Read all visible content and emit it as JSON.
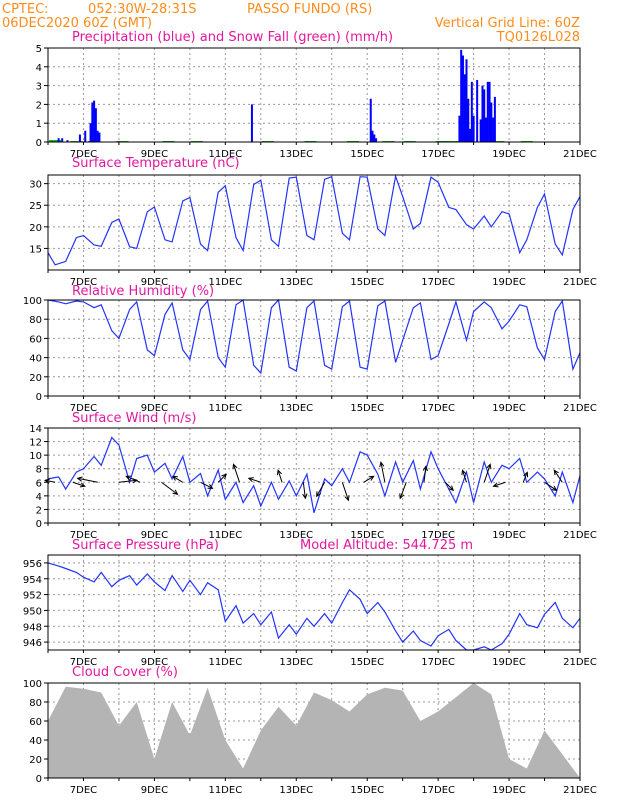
{
  "header": {
    "source": "CPTEC:",
    "coords": "052:30W-28:31S",
    "location": "PASSO FUNDO (RS)",
    "run": "06DEC2020 60Z (GMT)",
    "grid_note": "Vertical Grid Line: 60Z",
    "model": "TQ0126L028"
  },
  "date_labels": [
    "7DEC",
    "9DEC",
    "11DEC",
    "13DEC",
    "15DEC",
    "17DEC",
    "19DEC",
    "21DEC"
  ],
  "colors": {
    "precip": "#0000ff",
    "snow": "#00aa00",
    "line": "#2233ff",
    "cloud": "#b4b4b4",
    "grid": "#999999",
    "header": "#ff8c1a",
    "title": "#e4179f"
  },
  "chart_data": [
    {
      "type": "bar",
      "title": "Precipitation (blue) and Snow Fall (green) (mm/h)",
      "x_range": [
        6.0,
        21.0
      ],
      "ylim": [
        0,
        5
      ],
      "yticks": [
        0,
        1,
        2,
        3,
        4,
        5
      ],
      "grid": true,
      "series": [
        {
          "name": "Precipitation",
          "x": [
            6.3,
            6.4,
            6.55,
            6.9,
            7.05,
            7.2,
            7.25,
            7.3,
            7.35,
            7.4,
            7.45,
            11.75,
            15.1,
            15.15,
            15.2,
            15.25,
            17.6,
            17.65,
            17.7,
            17.75,
            17.8,
            17.85,
            17.9,
            17.95,
            18.0,
            18.1,
            18.2,
            18.25,
            18.3,
            18.35,
            18.4,
            18.45,
            18.5,
            18.55,
            18.6
          ],
          "values": [
            0.2,
            0.2,
            0.1,
            0.4,
            0.6,
            1.0,
            2.1,
            2.2,
            1.8,
            0.6,
            0.5,
            2.0,
            2.3,
            0.6,
            0.4,
            0.2,
            1.4,
            4.9,
            4.6,
            3.6,
            4.4,
            2.3,
            0.7,
            3.2,
            1.4,
            3.3,
            1.2,
            3.0,
            2.8,
            1.3,
            3.2,
            3.2,
            2.1,
            1.3,
            2.4
          ]
        },
        {
          "name": "Snow Fall",
          "x": [
            6.2,
            6.8,
            7.3,
            8.1,
            9.4,
            10.2,
            12.2,
            13.4,
            14.6,
            15.6,
            16.2,
            17.1,
            17.4,
            18.7,
            19.5
          ],
          "values": [
            0.1,
            0.05,
            0.05,
            0.05,
            0.05,
            0.05,
            0.05,
            0.05,
            0.05,
            0.05,
            0.05,
            0.05,
            0.05,
            0.05,
            0.05
          ]
        }
      ]
    },
    {
      "type": "line",
      "title": "Surface Temperature (nC)",
      "ylim": [
        10,
        32
      ],
      "yticks": [
        15,
        20,
        25,
        30
      ],
      "grid": true,
      "series": [
        {
          "x": [
            6.0,
            6.2,
            6.5,
            6.8,
            7.0,
            7.3,
            7.5,
            7.8,
            8.0,
            8.3,
            8.5,
            8.8,
            9.0,
            9.3,
            9.5,
            9.8,
            10.0,
            10.3,
            10.5,
            10.8,
            11.0,
            11.3,
            11.5,
            11.8,
            12.0,
            12.3,
            12.5,
            12.8,
            13.0,
            13.3,
            13.5,
            13.8,
            14.0,
            14.3,
            14.5,
            14.8,
            15.0,
            15.3,
            15.5,
            15.8,
            16.0,
            16.3,
            16.5,
            16.8,
            17.0,
            17.3,
            17.5,
            17.8,
            18.0,
            18.3,
            18.5,
            18.8,
            19.0,
            19.3,
            19.5,
            19.8,
            20.0,
            20.3,
            20.5,
            20.8,
            21.0
          ],
          "values": [
            14.0,
            11.2,
            12.0,
            17.5,
            18.0,
            15.8,
            15.5,
            21.0,
            21.8,
            15.4,
            15.0,
            23.5,
            24.6,
            17.0,
            16.5,
            26.0,
            26.8,
            16.0,
            14.5,
            28.0,
            29.5,
            17.5,
            14.5,
            29.8,
            30.8,
            17.0,
            15.5,
            31.3,
            31.5,
            18.0,
            17.0,
            31.0,
            31.6,
            18.5,
            17.0,
            31.6,
            31.5,
            19.5,
            18.0,
            31.7,
            27.0,
            19.5,
            20.8,
            31.5,
            30.3,
            24.5,
            24.0,
            20.5,
            19.5,
            22.5,
            20.0,
            23.5,
            23.0,
            14.0,
            17.0,
            24.5,
            27.6,
            16.0,
            13.5,
            24.0,
            27.0
          ]
        }
      ]
    },
    {
      "type": "line",
      "title": "Relative Humidity (%)",
      "ylim": [
        0,
        100
      ],
      "yticks": [
        0,
        20,
        40,
        60,
        80,
        100
      ],
      "grid": true,
      "series": [
        {
          "x": [
            6.0,
            6.3,
            6.5,
            6.8,
            7.0,
            7.3,
            7.5,
            7.8,
            8.0,
            8.3,
            8.5,
            8.8,
            9.0,
            9.3,
            9.5,
            9.8,
            10.0,
            10.3,
            10.5,
            10.8,
            11.0,
            11.3,
            11.5,
            11.8,
            12.0,
            12.3,
            12.5,
            12.8,
            13.0,
            13.3,
            13.5,
            13.8,
            14.0,
            14.3,
            14.5,
            14.8,
            15.0,
            15.3,
            15.5,
            15.8,
            16.0,
            16.3,
            16.5,
            16.8,
            17.0,
            17.3,
            17.5,
            17.8,
            18.0,
            18.3,
            18.5,
            18.8,
            19.0,
            19.3,
            19.5,
            19.8,
            20.0,
            20.3,
            20.5,
            20.8,
            21.0
          ],
          "values": [
            100,
            98,
            96,
            99,
            98,
            92,
            95,
            68,
            60,
            90,
            98,
            48,
            42,
            85,
            97,
            48,
            38,
            90,
            99,
            40,
            30,
            95,
            100,
            32,
            24,
            92,
            100,
            30,
            26,
            92,
            99,
            32,
            28,
            93,
            99,
            30,
            28,
            94,
            99,
            35,
            58,
            92,
            97,
            38,
            42,
            75,
            98,
            58,
            88,
            98,
            92,
            70,
            78,
            95,
            93,
            50,
            38,
            88,
            99,
            28,
            45
          ]
        }
      ]
    },
    {
      "type": "line",
      "title": "Surface Wind (m/s)",
      "ylim": [
        0,
        14
      ],
      "yticks": [
        0,
        2,
        4,
        6,
        8,
        10,
        12,
        14
      ],
      "grid": true,
      "series": [
        {
          "x": [
            6.0,
            6.3,
            6.5,
            6.8,
            7.0,
            7.3,
            7.5,
            7.8,
            8.0,
            8.3,
            8.5,
            8.8,
            9.0,
            9.3,
            9.5,
            9.8,
            10.0,
            10.3,
            10.5,
            10.8,
            11.0,
            11.3,
            11.5,
            11.8,
            12.0,
            12.3,
            12.5,
            12.8,
            13.0,
            13.3,
            13.5,
            13.8,
            14.0,
            14.3,
            14.5,
            14.8,
            15.0,
            15.3,
            15.5,
            15.8,
            16.0,
            16.3,
            16.5,
            16.8,
            17.0,
            17.3,
            17.5,
            17.8,
            18.0,
            18.3,
            18.5,
            18.8,
            19.0,
            19.3,
            19.5,
            19.8,
            20.0,
            20.3,
            20.5,
            20.8,
            21.0
          ],
          "values": [
            6.5,
            6.8,
            5.0,
            7.5,
            8.0,
            9.8,
            8.5,
            12.6,
            11.5,
            6.0,
            9.5,
            10.0,
            7.5,
            8.8,
            6.5,
            9.8,
            6.0,
            7.3,
            4.0,
            7.8,
            3.5,
            6.0,
            3.0,
            5.5,
            2.5,
            6.0,
            3.5,
            6.2,
            4.0,
            7.2,
            1.5,
            6.5,
            5.5,
            8.0,
            6.0,
            10.5,
            10.0,
            7.2,
            4.0,
            9.0,
            6.0,
            9.2,
            5.0,
            10.5,
            8.0,
            5.0,
            3.0,
            7.5,
            3.0,
            9.0,
            6.0,
            8.5,
            8.0,
            9.5,
            6.0,
            7.5,
            6.5,
            4.0,
            7.5,
            3.0,
            7.0
          ]
        }
      ],
      "vectors": {
        "x": [
          6.2,
          6.7,
          7.4,
          8.0,
          8.6,
          9.2,
          9.8,
          10.3,
          10.8,
          11.4,
          12.0,
          12.6,
          13.2,
          13.8,
          14.3,
          14.9,
          15.5,
          16.1,
          16.6,
          17.2,
          17.8,
          18.3,
          18.9,
          19.4,
          20.0,
          20.5
        ],
        "u": [
          -2.5,
          3.0,
          -5.0,
          4.5,
          -3.5,
          4.0,
          -2.5,
          3.0,
          2.0,
          -1.5,
          -3.0,
          -1.0,
          0.5,
          -2.0,
          1.5,
          2.5,
          -1.0,
          -1.5,
          0.5,
          2.0,
          -1.0,
          1.5,
          -3.0,
          1.0,
          3.0,
          -2.0
        ],
        "v": [
          0.5,
          -1.0,
          1.0,
          0.5,
          1.5,
          -3.0,
          1.5,
          -1.5,
          2.0,
          4.5,
          1.0,
          3.0,
          -4.0,
          -3.5,
          -4.5,
          1.5,
          5.0,
          -4.0,
          4.0,
          -2.0,
          3.0,
          4.5,
          -1.0,
          2.5,
          -2.0,
          3.0
        ]
      }
    },
    {
      "type": "line",
      "title": "Surface Pressure (hPa)",
      "annotation": "Model Altitude: 544.725 m",
      "ylim": [
        945,
        957
      ],
      "yticks": [
        946,
        948,
        950,
        952,
        954,
        956
      ],
      "grid": true,
      "series": [
        {
          "x": [
            6.0,
            6.3,
            6.5,
            6.8,
            7.0,
            7.3,
            7.5,
            7.8,
            8.0,
            8.3,
            8.5,
            8.8,
            9.0,
            9.3,
            9.5,
            9.8,
            10.0,
            10.3,
            10.5,
            10.8,
            11.0,
            11.3,
            11.5,
            11.8,
            12.0,
            12.3,
            12.5,
            12.8,
            13.0,
            13.3,
            13.5,
            13.8,
            14.0,
            14.3,
            14.5,
            14.8,
            15.0,
            15.3,
            15.5,
            15.8,
            16.0,
            16.3,
            16.5,
            16.8,
            17.0,
            17.3,
            17.5,
            17.8,
            18.0,
            18.3,
            18.5,
            18.8,
            19.0,
            19.3,
            19.5,
            19.8,
            20.0,
            20.3,
            20.5,
            20.8,
            21.0
          ],
          "values": [
            956.0,
            955.6,
            955.3,
            954.8,
            954.2,
            953.6,
            954.8,
            953.0,
            953.8,
            954.4,
            953.2,
            954.6,
            953.6,
            952.5,
            954.4,
            952.4,
            953.8,
            952.0,
            953.5,
            952.6,
            948.6,
            950.6,
            948.4,
            949.6,
            948.2,
            949.8,
            946.5,
            948.2,
            947.0,
            949.0,
            948.0,
            949.6,
            948.4,
            951.0,
            952.6,
            951.4,
            949.6,
            951.0,
            949.8,
            947.4,
            946.0,
            947.4,
            946.2,
            945.5,
            946.8,
            947.6,
            946.2,
            945.0,
            944.8,
            945.4,
            945.0,
            945.8,
            947.0,
            949.6,
            948.2,
            947.8,
            949.5,
            951.0,
            949.0,
            947.8,
            949.0
          ]
        }
      ]
    },
    {
      "type": "bar",
      "title": "Cloud Cover (%)",
      "x_range": [
        6.0,
        21.0
      ],
      "ylim": [
        0,
        100
      ],
      "yticks": [
        0,
        20,
        40,
        60,
        80,
        100
      ],
      "grid": true,
      "series": [
        {
          "x": [
            6.0,
            6.5,
            7.0,
            7.5,
            8.0,
            8.5,
            9.0,
            9.5,
            10.0,
            10.5,
            11.0,
            11.5,
            12.0,
            12.5,
            13.0,
            13.5,
            14.0,
            14.5,
            15.0,
            15.5,
            16.0,
            16.5,
            17.0,
            17.5,
            18.0,
            18.5,
            19.0,
            19.5,
            20.0,
            20.5,
            21.0
          ],
          "values": [
            60,
            96,
            94,
            90,
            55,
            80,
            20,
            80,
            45,
            95,
            40,
            10,
            50,
            75,
            55,
            90,
            82,
            70,
            88,
            95,
            92,
            60,
            70,
            85,
            100,
            88,
            20,
            10,
            50,
            25,
            0
          ]
        }
      ]
    }
  ]
}
